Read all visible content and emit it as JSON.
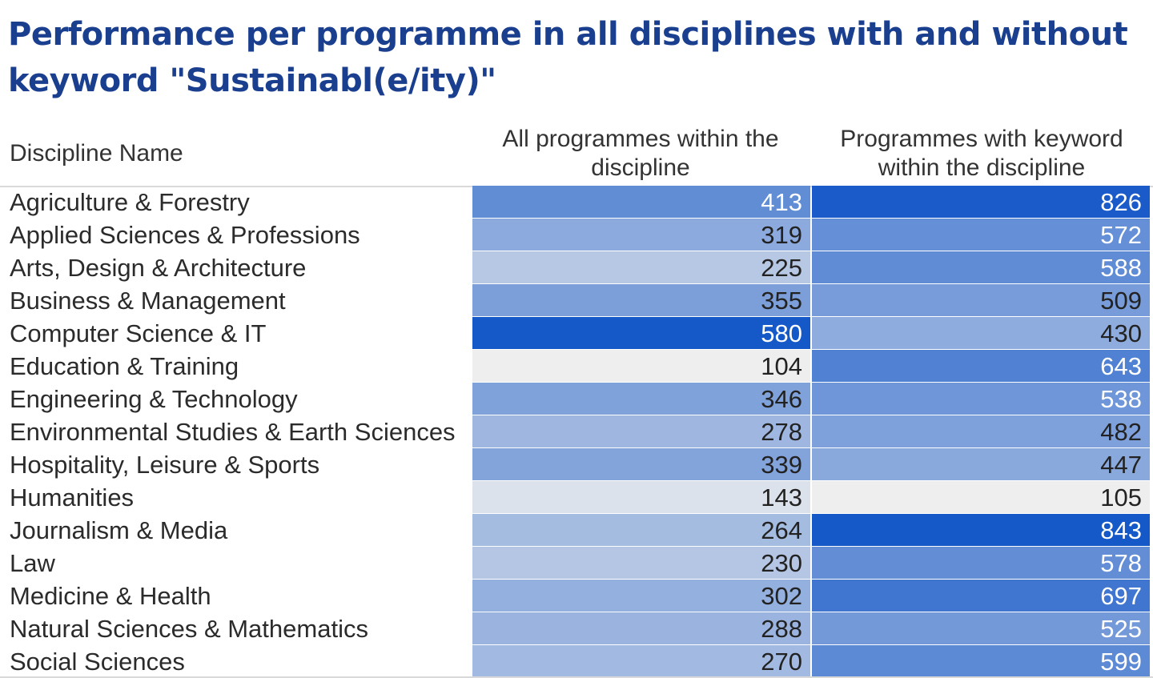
{
  "chart_data": {
    "type": "table",
    "title": "Performance per programme in all disciplines with and without keyword \"Sustainabl(e/ity)\"",
    "columns": [
      "Discipline Name",
      "All programmes within the discipline",
      "Programmes with keyword within the discipline"
    ],
    "rows": [
      {
        "name": "Agriculture & Forestry",
        "all": 413,
        "keyword": 826
      },
      {
        "name": "Applied Sciences & Professions",
        "all": 319,
        "keyword": 572
      },
      {
        "name": "Arts, Design & Architecture",
        "all": 225,
        "keyword": 588
      },
      {
        "name": "Business & Management",
        "all": 355,
        "keyword": 509
      },
      {
        "name": "Computer Science & IT",
        "all": 580,
        "keyword": 430
      },
      {
        "name": "Education & Training",
        "all": 104,
        "keyword": 643
      },
      {
        "name": "Engineering & Technology",
        "all": 346,
        "keyword": 538
      },
      {
        "name": "Environmental Studies & Earth Sciences",
        "all": 278,
        "keyword": 482
      },
      {
        "name": "Hospitality, Leisure & Sports",
        "all": 339,
        "keyword": 447
      },
      {
        "name": "Humanities",
        "all": 143,
        "keyword": 105
      },
      {
        "name": "Journalism & Media",
        "all": 264,
        "keyword": 843
      },
      {
        "name": "Law",
        "all": 230,
        "keyword": 578
      },
      {
        "name": "Medicine & Health",
        "all": 302,
        "keyword": 697
      },
      {
        "name": "Natural Sciences & Mathematics",
        "all": 288,
        "keyword": 525
      },
      {
        "name": "Social Sciences",
        "all": 270,
        "keyword": 599
      }
    ],
    "color_scale": {
      "low": "#eeeeee",
      "high": "#1558c8",
      "title_color": "#1b3f8f"
    }
  }
}
